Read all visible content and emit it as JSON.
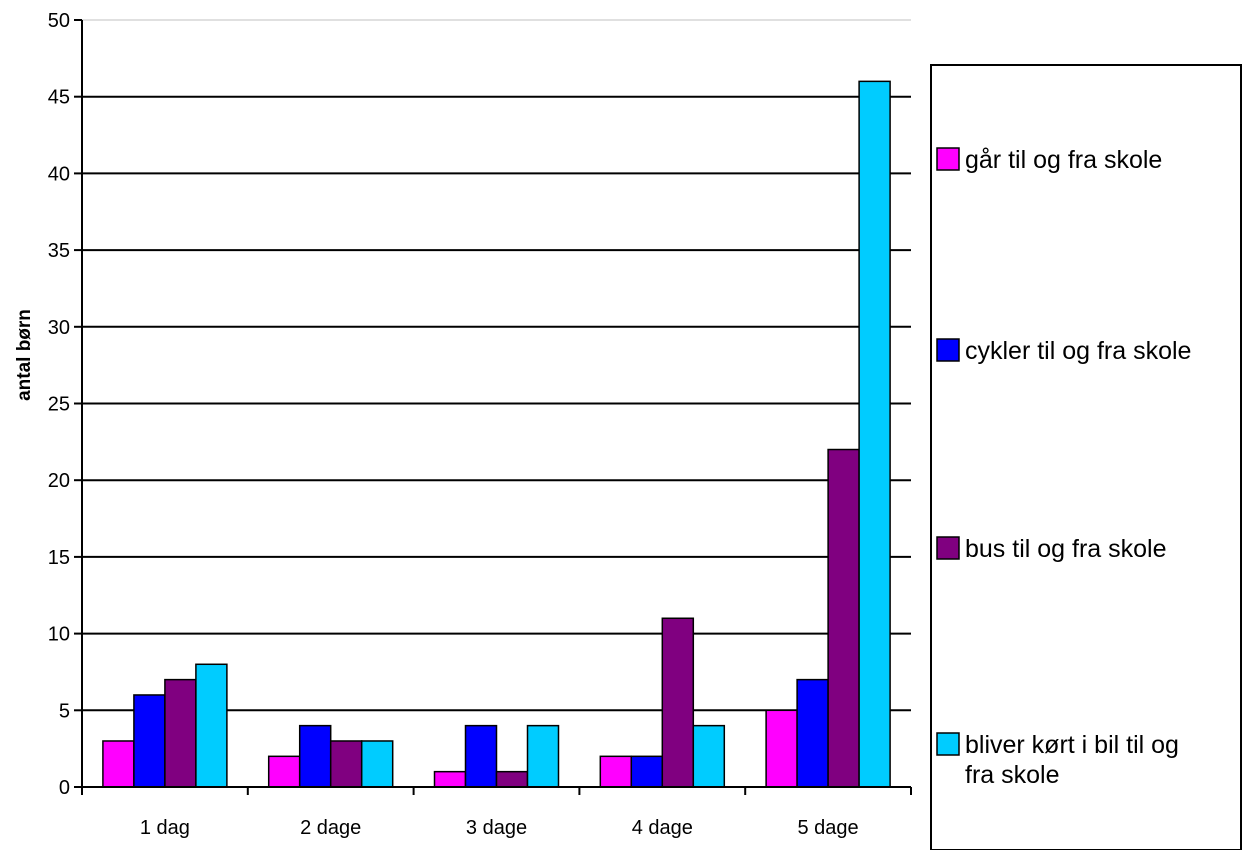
{
  "chart_data": {
    "type": "bar",
    "title": "",
    "xlabel": "",
    "ylabel": "antal børn",
    "ylim": [
      0,
      50
    ],
    "yticks": [
      0,
      5,
      10,
      15,
      20,
      25,
      30,
      35,
      40,
      45,
      50
    ],
    "grid": true,
    "legend_position": "right",
    "categories": [
      "1 dag",
      "2 dage",
      "3 dage",
      "4 dage",
      "5 dage"
    ],
    "series": [
      {
        "name": "går til og fra skole",
        "color": "#ff00ff",
        "values": [
          3,
          2,
          1,
          2,
          5
        ]
      },
      {
        "name": "cykler til og fra skole",
        "color": "#0000ff",
        "values": [
          6,
          4,
          4,
          2,
          7
        ]
      },
      {
        "name": "bus til og fra skole",
        "color": "#800080",
        "values": [
          7,
          3,
          1,
          11,
          22
        ]
      },
      {
        "name": "bliver kørt i bil til og fra skole",
        "color": "#00ccff",
        "values": [
          8,
          3,
          4,
          4,
          46
        ]
      }
    ]
  }
}
